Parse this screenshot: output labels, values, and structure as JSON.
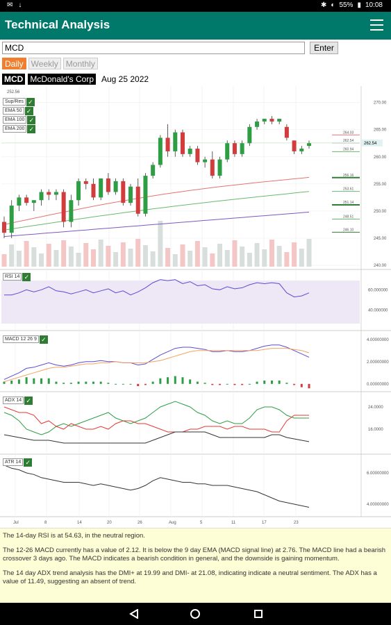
{
  "status": {
    "battery": "55%",
    "time": "10:08"
  },
  "app": {
    "title": "Technical Analysis"
  },
  "search": {
    "value": "MCD",
    "enter_label": "Enter"
  },
  "periods": [
    {
      "label": "Daily",
      "active": true
    },
    {
      "label": "Weekly",
      "active": false
    },
    {
      "label": "Monthly",
      "active": false
    }
  ],
  "stock": {
    "symbol": "MCD",
    "name": "McDonald's Corp",
    "date": "Aug 25 2022"
  },
  "legends": {
    "price": [
      "Sup/Res",
      "EMA 50",
      "EMA 100",
      "EMA 200"
    ],
    "rsi": "RSI 14",
    "macd": "MACD 12 26 9",
    "adx": "ADX 14",
    "atr": "ATR 14"
  },
  "chart_data": {
    "type": "candlestick",
    "price_axis_ticks": [
      "270.00",
      "265.00",
      "260.00",
      "255.00",
      "250.00",
      "245.00",
      "240.00"
    ],
    "price_top_label": "252.56",
    "price_markers": [
      "264.03",
      "262.54",
      "260.94",
      "256.16",
      "253.61",
      "251.14",
      "248.51",
      "246.10"
    ],
    "price_markers_right": [
      "262.54"
    ],
    "rsi_axis_ticks": [
      "60.000000",
      "40.000000"
    ],
    "macd_axis_ticks": [
      "4.00000000",
      "2.00000000",
      "0.00000000"
    ],
    "adx_axis_ticks": [
      "24.0000",
      "16.0000"
    ],
    "atr_axis_ticks": [
      "6.00000000",
      "4.00000000"
    ],
    "x_axis_ticks": [
      "Jul",
      "8",
      "14",
      "20",
      "26",
      "Aug",
      "5",
      "11",
      "17",
      "23"
    ],
    "candles": [
      {
        "o": 248,
        "h": 249,
        "l": 245,
        "c": 246
      },
      {
        "o": 246,
        "h": 252,
        "l": 245,
        "c": 251
      },
      {
        "o": 251,
        "h": 253,
        "l": 250,
        "c": 252.5
      },
      {
        "o": 252.5,
        "h": 253,
        "l": 251,
        "c": 251.5
      },
      {
        "o": 251.5,
        "h": 252,
        "l": 250,
        "c": 252
      },
      {
        "o": 252,
        "h": 254,
        "l": 251,
        "c": 253.5
      },
      {
        "o": 253.5,
        "h": 254,
        "l": 252,
        "c": 253
      },
      {
        "o": 253,
        "h": 254,
        "l": 252,
        "c": 253.5
      },
      {
        "o": 253.5,
        "h": 254,
        "l": 247,
        "c": 248
      },
      {
        "o": 248,
        "h": 253,
        "l": 247,
        "c": 252
      },
      {
        "o": 252,
        "h": 256,
        "l": 251,
        "c": 255.5
      },
      {
        "o": 255.5,
        "h": 256,
        "l": 254,
        "c": 255
      },
      {
        "o": 255,
        "h": 256,
        "l": 252,
        "c": 252.5
      },
      {
        "o": 252.5,
        "h": 256,
        "l": 252,
        "c": 256
      },
      {
        "o": 256,
        "h": 257,
        "l": 253,
        "c": 253.5
      },
      {
        "o": 253.5,
        "h": 256,
        "l": 253,
        "c": 255.5
      },
      {
        "o": 255.5,
        "h": 256,
        "l": 251,
        "c": 251.5
      },
      {
        "o": 251.5,
        "h": 255,
        "l": 251,
        "c": 254.5
      },
      {
        "o": 254.5,
        "h": 256,
        "l": 249,
        "c": 249.5
      },
      {
        "o": 249.5,
        "h": 257,
        "l": 249,
        "c": 256.5
      },
      {
        "o": 256.5,
        "h": 259,
        "l": 256,
        "c": 258.5
      },
      {
        "o": 258.5,
        "h": 264,
        "l": 258,
        "c": 263.5
      },
      {
        "o": 263.5,
        "h": 266,
        "l": 260,
        "c": 261
      },
      {
        "o": 261,
        "h": 265,
        "l": 260,
        "c": 264.5
      },
      {
        "o": 264.5,
        "h": 265,
        "l": 260,
        "c": 260.5
      },
      {
        "o": 260.5,
        "h": 262,
        "l": 260,
        "c": 261.5
      },
      {
        "o": 261.5,
        "h": 262,
        "l": 258.5,
        "c": 259
      },
      {
        "o": 259,
        "h": 260,
        "l": 258,
        "c": 259.5
      },
      {
        "o": 259.5,
        "h": 261,
        "l": 256,
        "c": 256.5
      },
      {
        "o": 256.5,
        "h": 260,
        "l": 256,
        "c": 259.5
      },
      {
        "o": 259.5,
        "h": 263,
        "l": 259,
        "c": 262.5
      },
      {
        "o": 262.5,
        "h": 263,
        "l": 260,
        "c": 260.5
      },
      {
        "o": 260.5,
        "h": 263,
        "l": 260,
        "c": 262.5
      },
      {
        "o": 262.5,
        "h": 266,
        "l": 262,
        "c": 265.5
      },
      {
        "o": 265.5,
        "h": 267,
        "l": 265,
        "c": 266.5
      },
      {
        "o": 266.5,
        "h": 267,
        "l": 266,
        "c": 267
      },
      {
        "o": 267,
        "h": 267.5,
        "l": 266,
        "c": 266.5
      },
      {
        "o": 266.5,
        "h": 267,
        "l": 266,
        "c": 267
      },
      {
        "o": 265.5,
        "h": 266,
        "l": 263,
        "c": 263.5
      },
      {
        "o": 263,
        "h": 263,
        "l": 260.5,
        "c": 261
      },
      {
        "o": 261,
        "h": 262,
        "l": 260.5,
        "c": 261.5
      },
      {
        "o": 262,
        "h": 263,
        "l": 261.5,
        "c": 262.5
      }
    ]
  },
  "summary": [
    "The 14-day RSI is at 54.63, in the neutral region.",
    "The 12-26 MACD currently has a value of 2.12. It is below the 9 day EMA (MACD signal line) at 2.76. The MACD line had a bearish crossover 3 days ago. The MACD indicates a bearish condition in general, and the downside is gaining momentum.",
    "The 14 day ADX trend analysis has the DMI+ at 19.99 and DMI- at 21.08, indicating indicate a neutral sentiment. The ADX has a value of 11.49, suggesting an absent of trend."
  ]
}
